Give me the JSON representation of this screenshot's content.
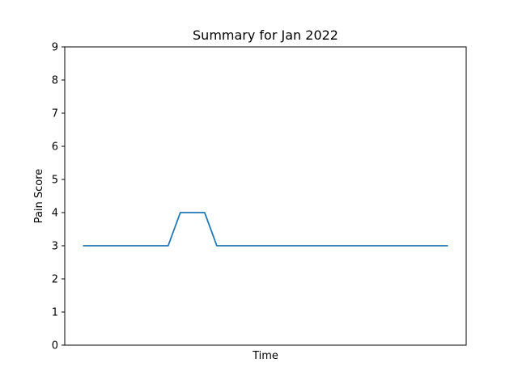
{
  "chart_data": {
    "type": "line",
    "title": "Summary for Jan 2022",
    "xlabel": "Time",
    "ylabel": "Pain Score",
    "ylim": [
      0,
      9
    ],
    "yticks": [
      0,
      1,
      2,
      3,
      4,
      5,
      6,
      7,
      8,
      9
    ],
    "xticks": [],
    "grid": false,
    "legend": "none",
    "series": [
      {
        "color": "#1f77b4",
        "x": [
          0,
          1,
          2,
          3,
          4,
          5,
          6,
          7,
          8,
          9,
          10,
          11,
          12,
          13,
          14,
          15,
          16,
          17,
          18,
          19,
          20,
          21,
          22,
          23,
          24,
          25,
          26,
          27,
          28,
          29,
          30
        ],
        "y": [
          3,
          3,
          3,
          3,
          3,
          3,
          3,
          3,
          4,
          4,
          4,
          3,
          3,
          3,
          3,
          3,
          3,
          3,
          3,
          3,
          3,
          3,
          3,
          3,
          3,
          3,
          3,
          3,
          3,
          3,
          3
        ]
      }
    ]
  }
}
